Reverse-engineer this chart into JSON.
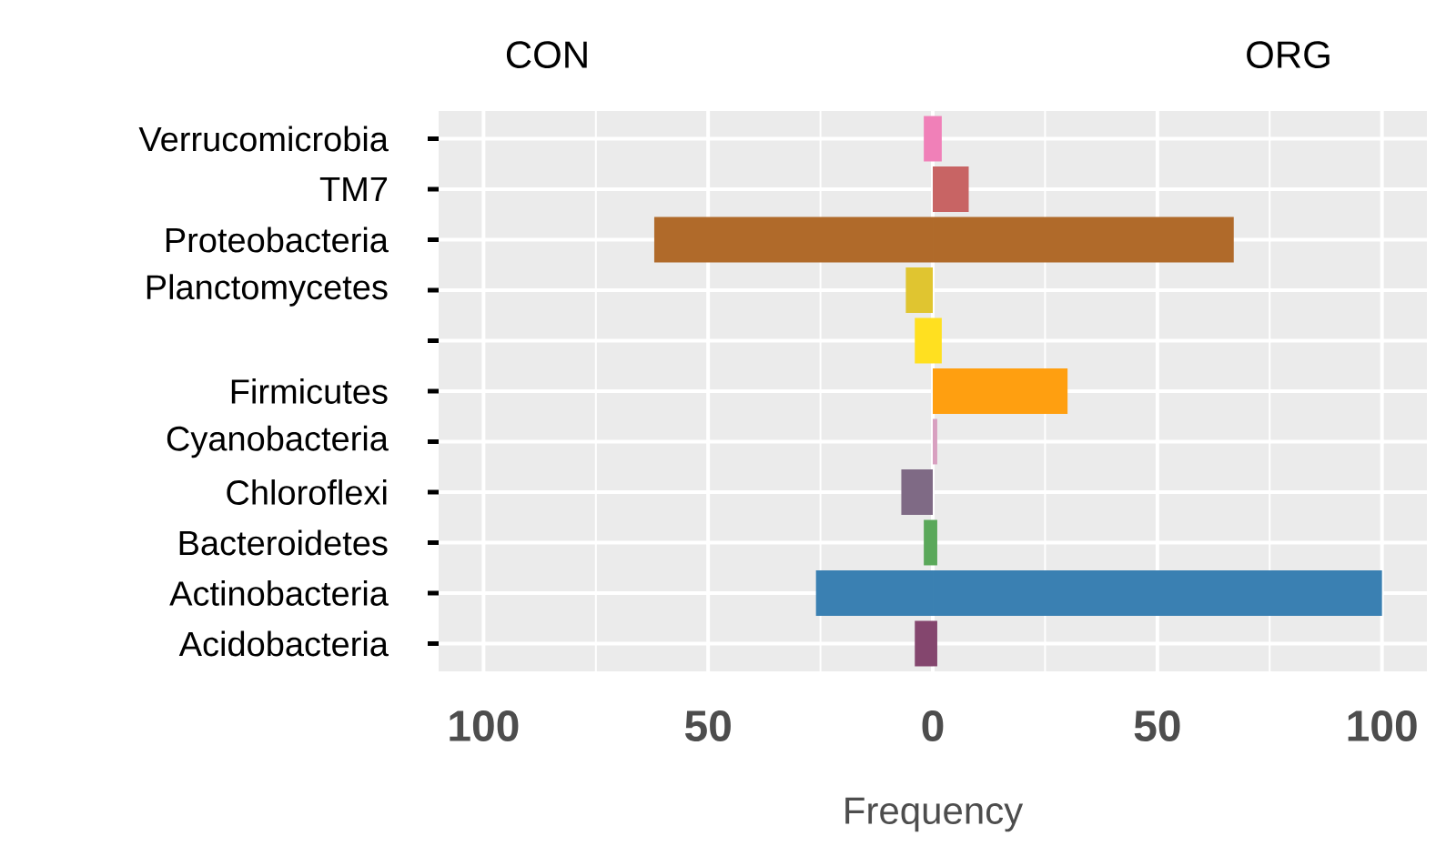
{
  "chart_data": {
    "type": "bar",
    "orientation": "horizontal",
    "stacked": true,
    "xlabel": "Frequency",
    "annotations": [
      "CON",
      "ORG"
    ],
    "categories": [
      "Verrucomicrobia",
      "TM7",
      "Proteobacteria",
      "Planctomycetes",
      null,
      "Firmicutes",
      "Cyanobacteria",
      "Chloroflexi",
      "Bacteroidetes",
      "Actinobacteria",
      "Acidobacteria"
    ],
    "series": [
      {
        "values": [
          -2,
          null,
          -62,
          -6,
          -4,
          null,
          null,
          -7,
          -2,
          -26,
          -4
        ],
        "colors": [
          "#f080b8",
          "#c86464",
          "#b06a2a",
          "#e0c530",
          "#ffe020",
          "#ff9f10",
          "#d8a0c0",
          "#7f6a85",
          "#5aa85a",
          "#3a80b2",
          "#84466e"
        ]
      },
      {
        "values": [
          2,
          8,
          67,
          null,
          2,
          30,
          1,
          null,
          1,
          100,
          1
        ],
        "colors": [
          "#f080b8",
          "#c86464",
          "#b06a2a",
          "#e0c530",
          "#ffe020",
          "#ff9f10",
          "#d8a0c0",
          "#7f6a85",
          "#5aa85a",
          "#3a80b2",
          "#84466e"
        ]
      }
    ],
    "xlim": [
      -110,
      110
    ],
    "xticks": [
      {
        "value": -100,
        "label": "100"
      },
      {
        "value": -75,
        "label": null
      },
      {
        "value": -50,
        "label": "50"
      },
      {
        "value": -25,
        "label": null
      },
      0,
      {
        "value": 25,
        "label": null
      },
      {
        "value": 50,
        "label": "50"
      },
      {
        "value": 75,
        "label": null
      },
      {
        "value": 100,
        "label": "100"
      }
    ],
    "grid": true
  }
}
